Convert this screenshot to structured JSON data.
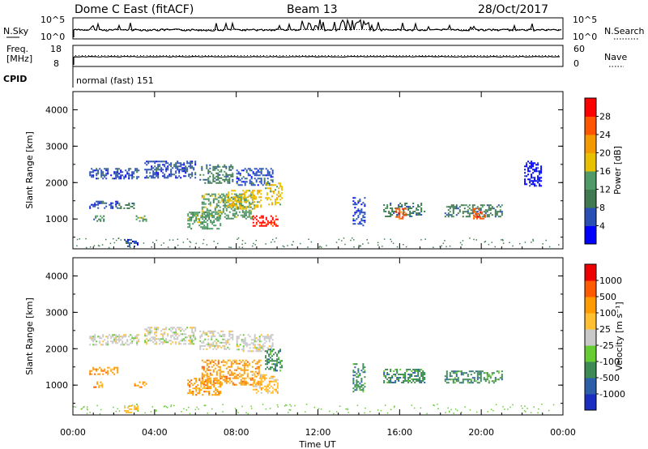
{
  "header": {
    "station": "Dome C East (fitACF)",
    "beam": "Beam 13",
    "date": "28/Oct/2017"
  },
  "noise_panel": {
    "left_label": "N.Sky",
    "left_ticks": [
      "10^5",
      "10^0"
    ],
    "right_label": "N.Search",
    "right_ticks": [
      "10^5",
      "10^0"
    ]
  },
  "freq_panel": {
    "left_label_line1": "Freq.",
    "left_label_line2": "[MHz]",
    "left_ticks": [
      "18",
      "8"
    ],
    "right_label": "Nave",
    "right_ticks": [
      "60",
      "0"
    ],
    "cpid_label": "CPID",
    "cpid_text": "normal (fast) 151"
  },
  "colors": {
    "power": [
      "#0000ff",
      "#2a4fb4",
      "#3f7a50",
      "#4f9a66",
      "#e8c000",
      "#f39a00",
      "#ff5500",
      "#ff0000"
    ],
    "velocity": [
      "#ee0000",
      "#ff5a00",
      "#ff9b00",
      "#ffbf30",
      "#c8c8c8",
      "#66cc33",
      "#3d8a55",
      "#2c5fa8",
      "#1a2fc0"
    ]
  },
  "chart_data": [
    {
      "type": "heatmap",
      "title": "",
      "ylabel": "Slant Range [km]",
      "xlim": [
        "00:00",
        "24:00"
      ],
      "ylim": [
        180,
        4500
      ],
      "yticks": [
        "1000",
        "2000",
        "3000",
        "4000"
      ],
      "colorbar": {
        "label": "Power [dB]",
        "range": [
          0,
          32
        ],
        "ticks": [
          "4",
          "8",
          "12",
          "16",
          "20",
          "24",
          "28"
        ]
      },
      "regions": [
        {
          "t0": 0.8,
          "t1": 3.2,
          "r0": 2100,
          "r1": 2400,
          "level": 1
        },
        {
          "t0": 3.5,
          "t1": 6.0,
          "r0": 2150,
          "r1": 2600,
          "level": 1
        },
        {
          "t0": 6.2,
          "t1": 7.8,
          "r0": 2000,
          "r1": 2500,
          "level": 2
        },
        {
          "t0": 8.0,
          "t1": 9.8,
          "r0": 1950,
          "r1": 2400,
          "level": 1
        },
        {
          "t0": 0.8,
          "t1": 2.2,
          "r0": 1300,
          "r1": 1500,
          "level": 1
        },
        {
          "t0": 1.0,
          "t1": 1.5,
          "r0": 950,
          "r1": 1100,
          "level": 2
        },
        {
          "t0": 2.0,
          "t1": 3.0,
          "r0": 1300,
          "r1": 1450,
          "level": 2
        },
        {
          "t0": 3.0,
          "t1": 3.6,
          "r0": 950,
          "r1": 1100,
          "level": 3
        },
        {
          "t0": 5.6,
          "t1": 7.2,
          "r0": 750,
          "r1": 1200,
          "level": 3
        },
        {
          "t0": 6.3,
          "t1": 8.8,
          "r0": 1000,
          "r1": 1700,
          "level": 3
        },
        {
          "t0": 7.5,
          "t1": 9.2,
          "r0": 1300,
          "r1": 1800,
          "level": 4
        },
        {
          "t0": 8.8,
          "t1": 10.0,
          "r0": 800,
          "r1": 1100,
          "level": 7
        },
        {
          "t0": 9.4,
          "t1": 10.2,
          "r0": 1400,
          "r1": 2000,
          "level": 4
        },
        {
          "t0": 15.2,
          "t1": 17.2,
          "r0": 1050,
          "r1": 1450,
          "level": 2
        },
        {
          "t0": 15.8,
          "t1": 16.3,
          "r0": 1000,
          "r1": 1300,
          "level": 6
        },
        {
          "t0": 18.2,
          "t1": 21.0,
          "r0": 1050,
          "r1": 1400,
          "level": 2
        },
        {
          "t0": 19.6,
          "t1": 20.2,
          "r0": 1000,
          "r1": 1300,
          "level": 6
        },
        {
          "t0": 13.7,
          "t1": 14.3,
          "r0": 800,
          "r1": 1600,
          "level": 1
        },
        {
          "t0": 22.1,
          "t1": 22.9,
          "r0": 1900,
          "r1": 2600,
          "level": 0
        },
        {
          "t0": 2.5,
          "t1": 3.2,
          "r0": 250,
          "r1": 450,
          "level": 1
        }
      ]
    },
    {
      "type": "heatmap",
      "title": "",
      "ylabel": "Slant Range [km]",
      "xlabel": "Time UT",
      "xlim": [
        "00:00",
        "24:00"
      ],
      "ylim": [
        180,
        4500
      ],
      "yticks": [
        "1000",
        "2000",
        "3000",
        "4000"
      ],
      "xticks": [
        "00:00",
        "04:00",
        "08:00",
        "12:00",
        "16:00",
        "20:00",
        "00:00"
      ],
      "colorbar": {
        "label": "Velocity [m s⁻¹]",
        "ticks": [
          "1000",
          "500",
          "100",
          "25",
          "-25",
          "-100",
          "-500",
          "-1000"
        ]
      },
      "regions": [
        {
          "t0": 0.8,
          "t1": 3.2,
          "r0": 2100,
          "r1": 2400,
          "level": 4
        },
        {
          "t0": 3.5,
          "t1": 6.0,
          "r0": 2150,
          "r1": 2600,
          "level": 4
        },
        {
          "t0": 6.2,
          "t1": 7.8,
          "r0": 2000,
          "r1": 2500,
          "level": 4
        },
        {
          "t0": 8.0,
          "t1": 9.8,
          "r0": 1950,
          "r1": 2400,
          "level": 4
        },
        {
          "t0": 0.8,
          "t1": 2.2,
          "r0": 1300,
          "r1": 1500,
          "level": 2
        },
        {
          "t0": 1.0,
          "t1": 1.5,
          "r0": 950,
          "r1": 1100,
          "level": 2
        },
        {
          "t0": 3.0,
          "t1": 3.6,
          "r0": 950,
          "r1": 1100,
          "level": 2
        },
        {
          "t0": 5.6,
          "t1": 7.2,
          "r0": 750,
          "r1": 1200,
          "level": 2
        },
        {
          "t0": 6.3,
          "t1": 9.2,
          "r0": 1000,
          "r1": 1700,
          "level": 2
        },
        {
          "t0": 8.8,
          "t1": 10.0,
          "r0": 800,
          "r1": 1300,
          "level": 3
        },
        {
          "t0": 9.4,
          "t1": 10.2,
          "r0": 1400,
          "r1": 2000,
          "level": 6
        },
        {
          "t0": 15.2,
          "t1": 17.2,
          "r0": 1050,
          "r1": 1450,
          "level": 6
        },
        {
          "t0": 18.2,
          "t1": 21.0,
          "r0": 1050,
          "r1": 1400,
          "level": 6
        },
        {
          "t0": 13.7,
          "t1": 14.3,
          "r0": 800,
          "r1": 1600,
          "level": 6
        },
        {
          "t0": 2.5,
          "t1": 3.2,
          "r0": 250,
          "r1": 450,
          "level": 3
        }
      ]
    }
  ]
}
